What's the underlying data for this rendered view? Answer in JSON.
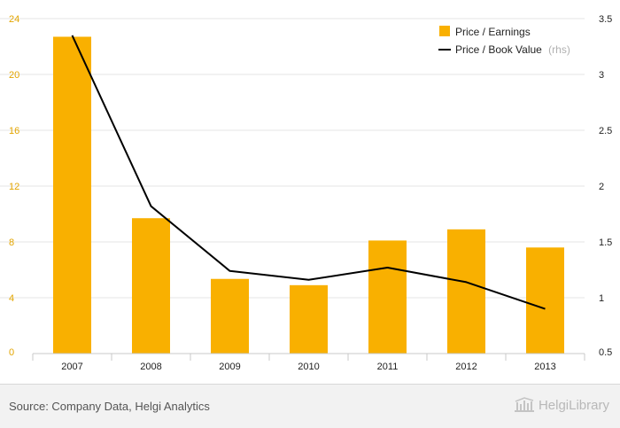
{
  "chart_data": {
    "type": "bar",
    "categories": [
      "2007",
      "2008",
      "2009",
      "2010",
      "2011",
      "2012",
      "2013"
    ],
    "series": [
      {
        "name": "Price / Earnings",
        "type": "bar",
        "axis": "left",
        "color": "#f9b000",
        "values": [
          22.7,
          9.7,
          5.35,
          4.9,
          8.1,
          8.9,
          7.6
        ]
      },
      {
        "name": "Price / Book Value",
        "name_suffix": "(rhs)",
        "type": "line",
        "axis": "right",
        "color": "#000000",
        "values": [
          3.35,
          1.82,
          1.24,
          1.16,
          1.27,
          1.14,
          0.9
        ]
      }
    ],
    "y_left": {
      "min": 0,
      "max": 24,
      "ticks": [
        "0",
        "4",
        "8",
        "12",
        "16",
        "20",
        "24"
      ]
    },
    "y_right": {
      "min": 0.5,
      "max": 3.5,
      "ticks": [
        "0.5",
        "1",
        "1.5",
        "2",
        "2.5",
        "3",
        "3.5"
      ]
    },
    "grid": true,
    "legend_position": "top-right"
  },
  "footer": {
    "source": "Source: Company Data, Helgi Analytics",
    "brand": "HelgiLibrary",
    "brand_icon": "library-building-icon"
  }
}
